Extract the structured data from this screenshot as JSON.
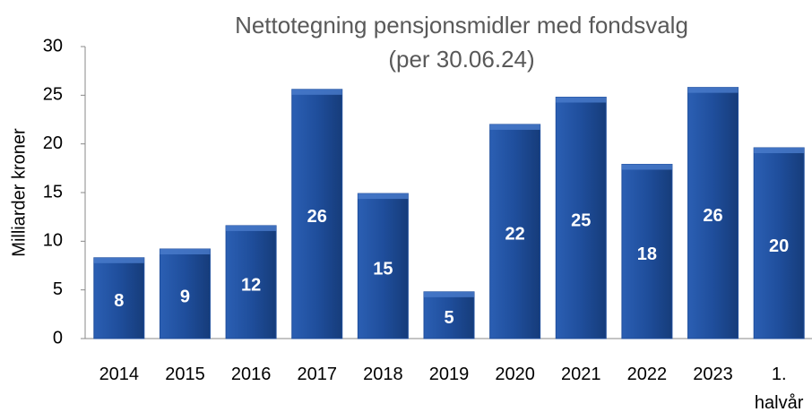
{
  "chart_data": {
    "type": "bar",
    "title": "Nettotegning pensjonsmidler med fondsvalg",
    "subtitle": "(per 30.06.24)",
    "y_label": "Milliarder kroner",
    "categories": [
      "2014",
      "2015",
      "2016",
      "2017",
      "2018",
      "2019",
      "2020",
      "2021",
      "2022",
      "2023",
      "1. halvår"
    ],
    "values": [
      8.3,
      9.2,
      11.6,
      25.6,
      14.9,
      4.8,
      22.0,
      24.8,
      17.9,
      25.8,
      19.6
    ],
    "value_labels": [
      "8",
      "9",
      "12",
      "26",
      "15",
      "5",
      "22",
      "25",
      "18",
      "26",
      "20"
    ],
    "color": "#1f4e9c",
    "ylim": [
      0,
      30
    ],
    "yticks": [
      0,
      5,
      10,
      15,
      20,
      25,
      30
    ],
    "grid": false
  }
}
